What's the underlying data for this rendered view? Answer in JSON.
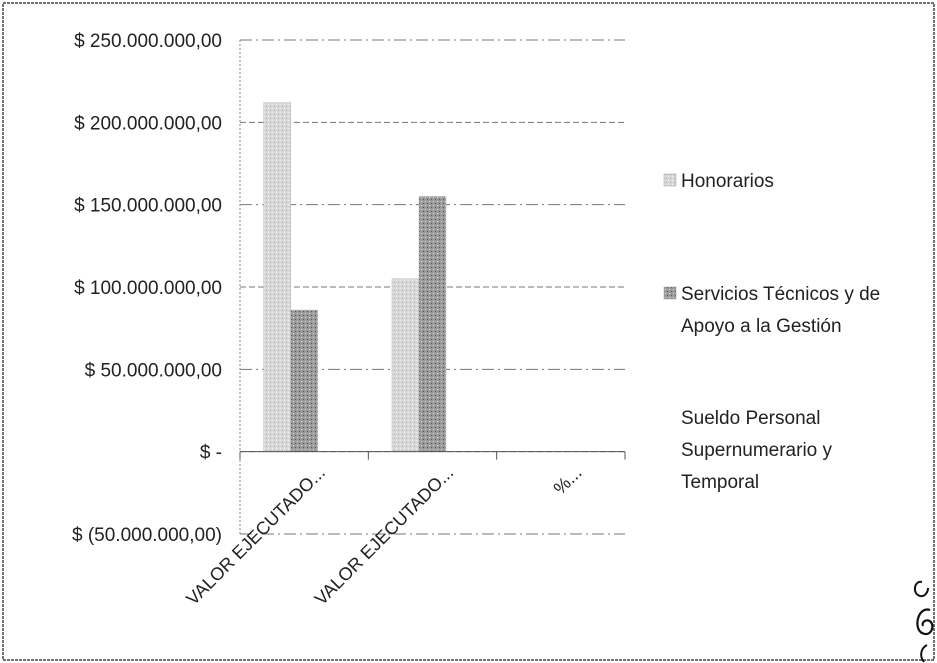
{
  "chart_data": {
    "type": "bar",
    "categories": [
      "VALOR EJECUTADO...",
      "VALOR EJECUTADO...",
      "%..."
    ],
    "series": [
      {
        "name": "Honorarios",
        "values": [
          212000000,
          105000000,
          0
        ],
        "color": "#cfcfcf"
      },
      {
        "name": "Servicios Técnicos y de Apoyo a la Gestión",
        "values": [
          86000000,
          155000000,
          0
        ],
        "color": "#9a9a9a"
      },
      {
        "name": "Sueldo Personal Supernumerario y Temporal",
        "values": [
          0,
          0,
          0
        ],
        "color": "#ffffff"
      }
    ],
    "yticks": [
      250000000,
      200000000,
      150000000,
      100000000,
      50000000,
      0,
      -50000000
    ],
    "ytick_labels": [
      "$ 250.000.000,00",
      "$ 200.000.000,00",
      "$ 150.000.000,00",
      "$ 100.000.000,00",
      "$ 50.000.000,00",
      "$ -",
      "$ (50.000.000,00)"
    ],
    "ylim": [
      -50000000,
      250000000
    ],
    "grid": true,
    "legend_position": "right",
    "title": "",
    "xlabel": "",
    "ylabel": ""
  }
}
